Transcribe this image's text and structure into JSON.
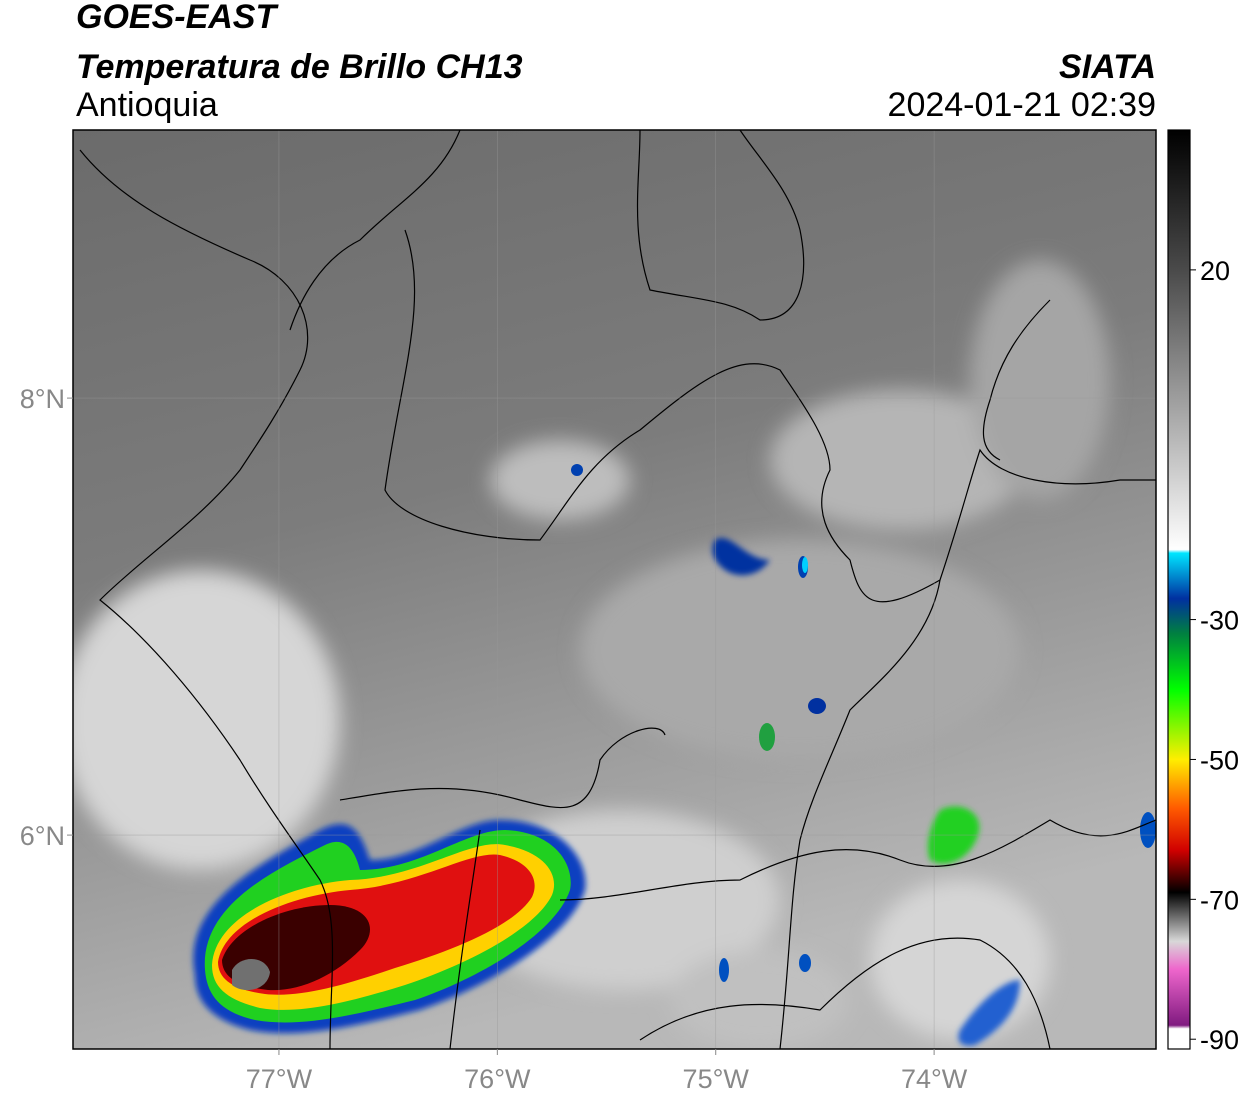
{
  "map": {
    "source_title": "GOES-EAST",
    "title": "Temperatura de Brillo CH13",
    "region": "Antioquia",
    "agency": "SIATA",
    "timestamp": "2024-01-21 02:39",
    "xlim": [
      -77.943,
      -72.984
    ],
    "ylim": [
      5.021,
      9.227
    ],
    "xticks": [
      {
        "value": -77,
        "label": "77°W"
      },
      {
        "value": -76,
        "label": "76°W"
      },
      {
        "value": -75,
        "label": "75°W"
      },
      {
        "value": -74,
        "label": "74°W"
      }
    ],
    "yticks": [
      {
        "value": 6,
        "label": "6°N"
      },
      {
        "value": 8,
        "label": "8°N"
      }
    ],
    "grid": true,
    "colorbar": {
      "lim": [
        -91.4,
        40
      ],
      "ticks": [
        20,
        -30,
        -50,
        -70,
        -90
      ],
      "stops": [
        {
          "value": 40,
          "color": "#000000"
        },
        {
          "value": 20,
          "color": "#4a4a4a"
        },
        {
          "value": -20,
          "color": "#ffffff"
        },
        {
          "value": -20.5,
          "color": "#00e5ff"
        },
        {
          "value": -27,
          "color": "#0030a0"
        },
        {
          "value": -32,
          "color": "#008040"
        },
        {
          "value": -40,
          "color": "#00ff00"
        },
        {
          "value": -50,
          "color": "#ffee00"
        },
        {
          "value": -57,
          "color": "#ff5a00"
        },
        {
          "value": -63,
          "color": "#d00000"
        },
        {
          "value": -69,
          "color": "#000000"
        },
        {
          "value": -76,
          "color": "#d8d8d8"
        },
        {
          "value": -80,
          "color": "#ee66cc"
        },
        {
          "value": -88,
          "color": "#801a80"
        },
        {
          "value": -88.5,
          "color": "#ffffff"
        }
      ]
    }
  }
}
